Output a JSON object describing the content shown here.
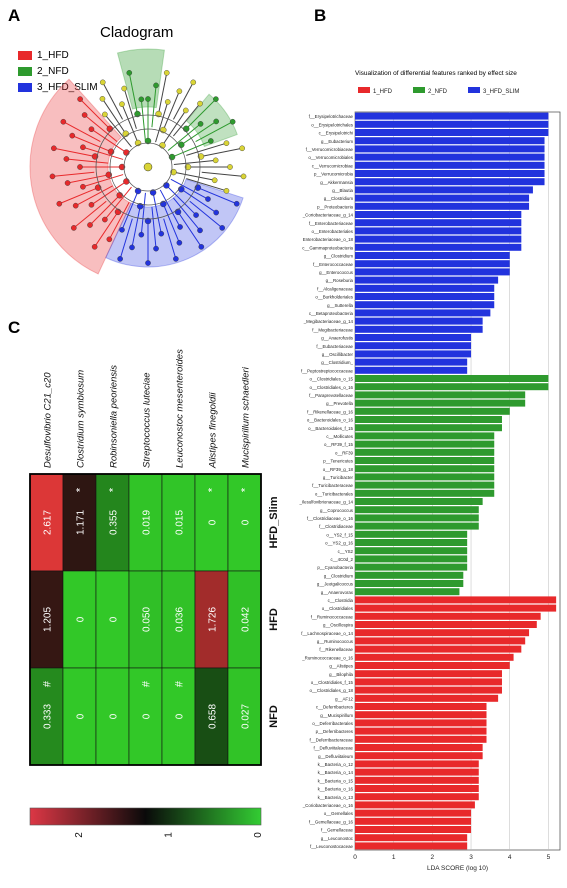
{
  "panels": {
    "a": "A",
    "b": "B",
    "c": "C"
  },
  "cladogram": {
    "title": "Cladogram",
    "legend": [
      {
        "label": "1_HFD",
        "color": "#e8292b"
      },
      {
        "label": "2_NFD",
        "color": "#2e9a2e"
      },
      {
        "label": "3_HFD_SLIM",
        "color": "#2233dd"
      }
    ]
  },
  "colors": {
    "HFD": "#e8292b",
    "NFD": "#2e9a2e",
    "HFD_SLIM": "#2233dd",
    "node_neutral": "#d9d436"
  },
  "chart_data": [
    {
      "type": "bar",
      "title": "Visualization of differential features ranked by effect size",
      "xlabel": "LDA SCORE (log 10)",
      "xlim": [
        0,
        5.3
      ],
      "xticks": [
        0,
        1,
        2,
        3,
        4,
        5
      ],
      "grid": true,
      "legend": [
        {
          "name": "1_HFD",
          "color": "#e8292b"
        },
        {
          "name": "2_NFD",
          "color": "#2e9a2e"
        },
        {
          "name": "3_HFD_SLIM",
          "color": "#2233dd"
        }
      ],
      "legend_position": "top",
      "series": [
        {
          "name": "3_HFD_SLIM",
          "color": "#2233dd",
          "items": [
            [
              "f__Erysipelotrichaceae",
              5.0
            ],
            [
              "o__Erysipelotrichales",
              5.0
            ],
            [
              "c__Erysipelotrichi",
              5.0
            ],
            [
              "g__Eubacterium",
              4.9
            ],
            [
              "f__Verrucomicrobiaceae",
              4.9
            ],
            [
              "o__Verrucomicrobiales",
              4.9
            ],
            [
              "c__Verrucomicrobiae",
              4.9
            ],
            [
              "p__Verrucomicrobia",
              4.9
            ],
            [
              "g__Akkermansia",
              4.9
            ],
            [
              "g__Blautia",
              4.6
            ],
            [
              "g__Clostridium",
              4.5
            ],
            [
              "p__Proteobacteria",
              4.5
            ],
            [
              "_Coriobacteriaceae_g_14",
              4.3
            ],
            [
              "f__Enterobacteriaceae",
              4.3
            ],
            [
              "o__Enterobacteriales",
              4.3
            ],
            [
              "Enterobacteriaceae_o_18",
              4.3
            ],
            [
              "c__Gammaproteobacteria",
              4.3
            ],
            [
              "g__Clostridium",
              4.0
            ],
            [
              "f__Enterococcaceae",
              4.0
            ],
            [
              "g__Enterococcus",
              4.0
            ],
            [
              "g__Roseburia",
              3.7
            ],
            [
              "f__Alcaligenaceae",
              3.6
            ],
            [
              "o__Burkholderiales",
              3.6
            ],
            [
              "g__Sutterella",
              3.6
            ],
            [
              "c__Betaproteobacteria",
              3.5
            ],
            [
              "_Megibacteriaceae_g_14",
              3.3
            ],
            [
              "f__Megibacteriaceae",
              3.3
            ],
            [
              "g__Anaerofustis",
              3.0
            ],
            [
              "f__Eubacteriaceae",
              3.0
            ],
            [
              "g__Oscillibacter",
              3.0
            ],
            [
              "g__Clostridium_",
              2.9
            ],
            [
              "f__Peptostreptococcaceae",
              2.9
            ]
          ]
        },
        {
          "name": "2_NFD",
          "color": "#2e9a2e",
          "items": [
            [
              "o__Clostridiales_o_15",
              5.0
            ],
            [
              "o__Clostridiales_o_16",
              5.0
            ],
            [
              "f__Paraprevotellaceae",
              4.4
            ],
            [
              "g__Prevotella",
              4.4
            ],
            [
              "f__Rikenellaceae_g_16",
              4.0
            ],
            [
              "o__Bacteroidales_o_16",
              3.8
            ],
            [
              "o__Bacteroidales_f_15",
              3.8
            ],
            [
              "c__Mollicutes",
              3.6
            ],
            [
              "o__RF39_f_15",
              3.6
            ],
            [
              "o__RF39",
              3.6
            ],
            [
              "p__Tenericutes",
              3.6
            ],
            [
              "o__RF39_g_18",
              3.6
            ],
            [
              "g__Turicibacter",
              3.6
            ],
            [
              "f__Turicibacteraceae",
              3.6
            ],
            [
              "o__Turicibacterales",
              3.6
            ],
            [
              "_Ilesulfovibrionaceae_g_14",
              3.3
            ],
            [
              "g__Coprococcus",
              3.2
            ],
            [
              "f__Clostridiaceae_o_16",
              3.2
            ],
            [
              "f__Clostridiaceae",
              3.2
            ],
            [
              "o__YS2_f_15",
              2.9
            ],
            [
              "o__YS2_g_16",
              2.9
            ],
            [
              "c__YS2",
              2.9
            ],
            [
              "c__4C0d_2",
              2.9
            ],
            [
              "p__Cyanobacteria",
              2.9
            ],
            [
              "g__Clostridium",
              2.8
            ],
            [
              "g__Jeotgalicoccus",
              2.8
            ],
            [
              "g__Anaerovorax",
              2.7
            ]
          ]
        },
        {
          "name": "1_HFD",
          "color": "#e8292b",
          "items": [
            [
              "c__Clostridia",
              5.2
            ],
            [
              "o__Clostridiales",
              5.2
            ],
            [
              "f__Ruminococcaceae",
              4.8
            ],
            [
              "g__Oscillospira",
              4.7
            ],
            [
              "f__Lachnospiraceae_o_14",
              4.5
            ],
            [
              "g__Ruminococcus",
              4.4
            ],
            [
              "f__Rikenellaceae",
              4.3
            ],
            [
              "_Ruminococcaceae_o_16",
              4.1
            ],
            [
              "g__Alistipes",
              4.0
            ],
            [
              "g__Bilophila",
              3.8
            ],
            [
              "o__Clostridiales_f_15",
              3.8
            ],
            [
              "o__Clostridiales_g_18",
              3.8
            ],
            [
              "g__AF12",
              3.7
            ],
            [
              "c__Deferribacteres",
              3.4
            ],
            [
              "g__Mucispirillum",
              3.4
            ],
            [
              "o__Deferribacterales",
              3.4
            ],
            [
              "p__Deferribacteres",
              3.4
            ],
            [
              "f__Deferribacteraceae",
              3.4
            ],
            [
              "f__Defluviitaleaceae",
              3.3
            ],
            [
              "g__Defluviitaleum",
              3.3
            ],
            [
              "k__Bacteria_o_12",
              3.2
            ],
            [
              "k__Bacteria_o_14",
              3.2
            ],
            [
              "k__Bacteria_o_15",
              3.2
            ],
            [
              "k__Bacteria_o_16",
              3.2
            ],
            [
              "k__Bacteria_o_13",
              3.2
            ],
            [
              "_Coriobacteriaceae_o_16",
              3.1
            ],
            [
              "o__Gemellales",
              3.0
            ],
            [
              "f__Gemellaceae_g_16",
              3.0
            ],
            [
              "f__Gemellaceae",
              3.0
            ],
            [
              "g__Leuconostoc",
              2.9
            ],
            [
              "f__Leuconostocaceae",
              2.9
            ]
          ]
        }
      ]
    },
    {
      "type": "heatmap",
      "columns": [
        "Desulfovibrio C21_c20",
        "Clostridium symbiosum",
        "Robinsoniella peoriensis",
        "Streptococcus luteciae",
        "Leuconostoc mesenteroides",
        "Alistipes finegoldii",
        "Mucispirillum schaedleri"
      ],
      "rows": [
        "HFD_Slim",
        "HFD",
        "NFD"
      ],
      "values": [
        [
          2.617,
          1.171,
          0.355,
          0.019,
          0.015,
          0,
          0
        ],
        [
          1.205,
          0,
          0,
          0.05,
          0.036,
          1.726,
          0.042
        ],
        [
          0.333,
          0,
          0,
          0,
          0,
          0.658,
          0.027
        ]
      ],
      "labels": [
        [
          "2.617",
          "1.171",
          "0.355",
          "0.019",
          "0.015",
          "0",
          "0"
        ],
        [
          "1.205",
          "0",
          "0",
          "0.050",
          "0.036",
          "1.726",
          "0.042"
        ],
        [
          "0.333",
          "0",
          "0",
          "0",
          "0",
          "0.658",
          "0.027"
        ]
      ],
      "marks": [
        [
          "",
          "*",
          "*",
          "",
          "",
          "*",
          "*"
        ],
        [
          "",
          "",
          "",
          "",
          "",
          "",
          ""
        ],
        [
          "#",
          "",
          "",
          "#",
          "#",
          "",
          ""
        ]
      ],
      "colorbar": {
        "ticks": [
          "2",
          "1",
          "0"
        ],
        "range": [
          2,
          0
        ]
      }
    }
  ]
}
